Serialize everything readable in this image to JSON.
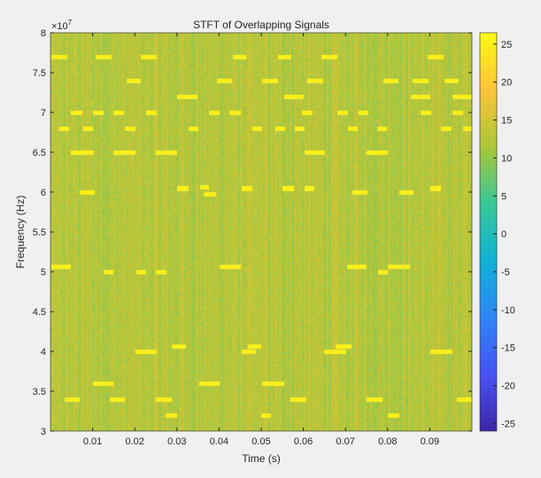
{
  "chart_data": {
    "type": "heatmap",
    "title": "STFT of Overlapping Signals",
    "xlabel": "Time (s)",
    "ylabel": "Frequency (Hz)",
    "y_exponent_label": "×10",
    "y_exponent": "7",
    "xlim": [
      0,
      0.1
    ],
    "ylim": [
      30000000.0,
      80000000.0
    ],
    "xticks": [
      "0.01",
      "0.02",
      "0.03",
      "0.04",
      "0.05",
      "0.06",
      "0.07",
      "0.08",
      "0.09"
    ],
    "yticks": [
      "3",
      "3.5",
      "4",
      "4.5",
      "5",
      "5.5",
      "6",
      "6.5",
      "7",
      "7.5",
      "8"
    ],
    "colorbar": {
      "range": [
        -26,
        26.5
      ],
      "ticks": [
        "25",
        "20",
        "15",
        "10",
        "5",
        "0",
        "-5",
        "-10",
        "-15",
        "-20",
        "-25"
      ],
      "colormap": "parula"
    },
    "background_level_db": [
      8,
      17
    ],
    "signal_level_db": 24,
    "signals": [
      [
        0.0002,
        0.0038,
        77000000.0
      ],
      [
        0.0107,
        0.0143,
        77000000.0
      ],
      [
        0.0214,
        0.025,
        77000000.0
      ],
      [
        0.0431,
        0.0464,
        77000000.0
      ],
      [
        0.0538,
        0.0571,
        77000000.0
      ],
      [
        0.0641,
        0.0679,
        77000000.0
      ],
      [
        0.0893,
        0.0931,
        77000000.0
      ],
      [
        0.0179,
        0.0214,
        74000000.0
      ],
      [
        0.0393,
        0.0429,
        74000000.0
      ],
      [
        0.0502,
        0.0538,
        74000000.0
      ],
      [
        0.0609,
        0.0645,
        74000000.0
      ],
      [
        0.0788,
        0.0824,
        74000000.0
      ],
      [
        0.0859,
        0.0895,
        74000000.0
      ],
      [
        0.0933,
        0.0968,
        74000000.0
      ],
      [
        0.03,
        0.0347,
        72000000.0
      ],
      [
        0.0553,
        0.0599,
        72000000.0
      ],
      [
        0.0855,
        0.0901,
        72000000.0
      ],
      [
        0.0952,
        0.0998,
        72000000.0
      ],
      [
        0.0048,
        0.0074,
        70000000.0
      ],
      [
        0.0099,
        0.0124,
        70000000.0
      ],
      [
        0.0149,
        0.0174,
        70000000.0
      ],
      [
        0.0225,
        0.025,
        70000000.0
      ],
      [
        0.0376,
        0.0401,
        70000000.0
      ],
      [
        0.0424,
        0.045,
        70000000.0
      ],
      [
        0.0595,
        0.062,
        70000000.0
      ],
      [
        0.0679,
        0.0704,
        70000000.0
      ],
      [
        0.0729,
        0.0754,
        70000000.0
      ],
      [
        0.0878,
        0.0903,
        70000000.0
      ],
      [
        0.0952,
        0.0977,
        70000000.0
      ],
      [
        0.0021,
        0.0044,
        68000000.0
      ],
      [
        0.0076,
        0.0099,
        68000000.0
      ],
      [
        0.0176,
        0.02,
        68000000.0
      ],
      [
        0.0326,
        0.0349,
        68000000.0
      ],
      [
        0.0477,
        0.05,
        68000000.0
      ],
      [
        0.0532,
        0.0555,
        68000000.0
      ],
      [
        0.0578,
        0.0601,
        68000000.0
      ],
      [
        0.0704,
        0.0727,
        68000000.0
      ],
      [
        0.0775,
        0.0798,
        68000000.0
      ],
      [
        0.0926,
        0.095,
        68000000.0
      ],
      [
        0.0977,
        0.1,
        68000000.0
      ],
      [
        0.0048,
        0.0101,
        65000000.0
      ],
      [
        0.0149,
        0.02,
        65000000.0
      ],
      [
        0.025,
        0.03,
        65000000.0
      ],
      [
        0.0601,
        0.0651,
        65000000.0
      ],
      [
        0.075,
        0.08,
        65000000.0
      ],
      [
        0.0069,
        0.0105,
        60000000.0
      ],
      [
        0.03,
        0.0326,
        60500000.0
      ],
      [
        0.0353,
        0.0376,
        60700000.0
      ],
      [
        0.0363,
        0.0391,
        59800000.0
      ],
      [
        0.0452,
        0.0477,
        60500000.0
      ],
      [
        0.055,
        0.0576,
        60500000.0
      ],
      [
        0.0601,
        0.0626,
        60500000.0
      ],
      [
        0.0716,
        0.0752,
        60000000.0
      ],
      [
        0.0826,
        0.0861,
        60000000.0
      ],
      [
        0.0901,
        0.0926,
        60500000.0
      ],
      [
        0.0002,
        0.0048,
        50700000.0
      ],
      [
        0.0401,
        0.045,
        50700000.0
      ],
      [
        0.0702,
        0.075,
        50700000.0
      ],
      [
        0.08,
        0.0851,
        50700000.0
      ],
      [
        0.0126,
        0.0149,
        50000000.0
      ],
      [
        0.0202,
        0.0225,
        50000000.0
      ],
      [
        0.025,
        0.0275,
        50000000.0
      ],
      [
        0.0777,
        0.08,
        50000000.0
      ],
      [
        0.0286,
        0.0321,
        40700000.0
      ],
      [
        0.0468,
        0.0498,
        40700000.0
      ],
      [
        0.0676,
        0.0714,
        40700000.0
      ],
      [
        0.02,
        0.025,
        40000000.0
      ],
      [
        0.0452,
        0.0487,
        40000000.0
      ],
      [
        0.0649,
        0.07,
        40000000.0
      ],
      [
        0.0901,
        0.0952,
        40000000.0
      ],
      [
        0.0099,
        0.0149,
        36000000.0
      ],
      [
        0.0351,
        0.0401,
        36000000.0
      ],
      [
        0.0502,
        0.0553,
        36000000.0
      ],
      [
        0.0032,
        0.0069,
        34000000.0
      ],
      [
        0.0139,
        0.0176,
        34000000.0
      ],
      [
        0.025,
        0.0286,
        34000000.0
      ],
      [
        0.0569,
        0.0607,
        34000000.0
      ],
      [
        0.075,
        0.0786,
        34000000.0
      ],
      [
        0.0964,
        0.1,
        34000000.0
      ],
      [
        0.0273,
        0.03,
        32000000.0
      ],
      [
        0.0498,
        0.0523,
        32000000.0
      ],
      [
        0.08,
        0.0826,
        32000000.0
      ]
    ]
  }
}
